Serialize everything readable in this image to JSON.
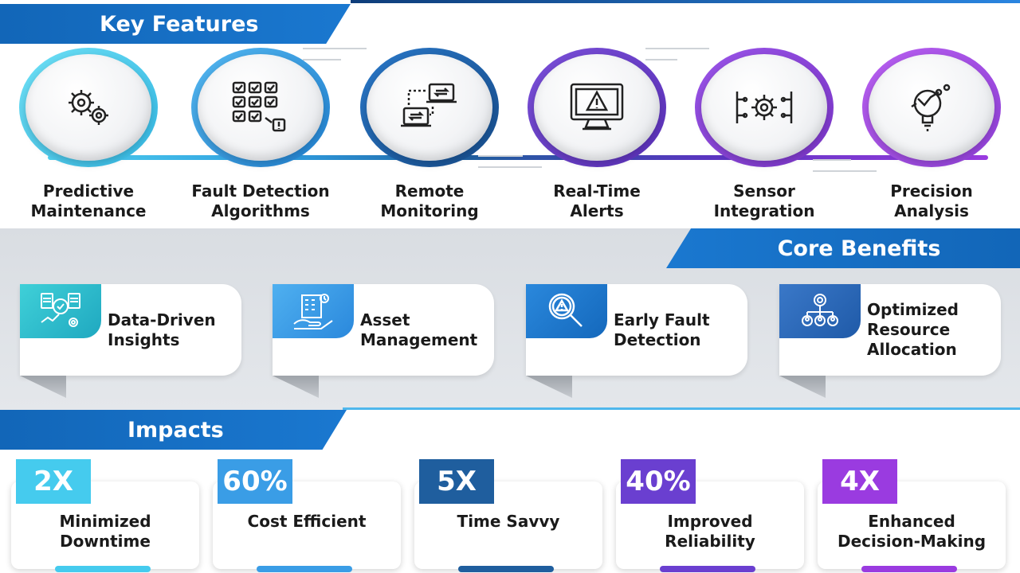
{
  "sections": {
    "key_features": "Key Features",
    "core_benefits": "Core Benefits",
    "impacts": "Impacts"
  },
  "features": [
    {
      "line1": "Predictive",
      "line2": "Maintenance",
      "icon": "gears-icon",
      "color": "#4fd0ee"
    },
    {
      "line1": "Fault Detection",
      "line2": "Algorithms",
      "icon": "checklist-grid-icon",
      "color": "#2f9ee0"
    },
    {
      "line1": "Remote",
      "line2": "Monitoring",
      "icon": "remote-laptops-icon",
      "color": "#1f5e9e"
    },
    {
      "line1": "Real-Time",
      "line2": "Alerts",
      "icon": "alert-monitor-icon",
      "color": "#6a3fd0"
    },
    {
      "line1": "Sensor",
      "line2": "Integration",
      "icon": "sensor-chip-icon",
      "color": "#8a3de0"
    },
    {
      "line1": "Precision",
      "line2": "Analysis",
      "icon": "precision-analysis-icon",
      "color": "#a03fe6"
    }
  ],
  "benefits": [
    {
      "line1": "Data-Driven",
      "line2": "Insights",
      "line3": "",
      "icon": "data-insights-icon",
      "color": "#2fc0cf"
    },
    {
      "line1": "Asset",
      "line2": "Management",
      "line3": "",
      "icon": "asset-building-icon",
      "color": "#3a9de6"
    },
    {
      "line1": "Early Fault",
      "line2": "Detection",
      "line3": "",
      "icon": "magnifier-alert-icon",
      "color": "#1b75cc"
    },
    {
      "line1": "Optimized",
      "line2": "Resource",
      "line3": "Allocation",
      "icon": "resource-network-icon",
      "color": "#2a68b8"
    }
  ],
  "impacts": [
    {
      "value": "2X",
      "line1": "Minimized",
      "line2": "Downtime",
      "color": "#45cbee"
    },
    {
      "value": "60%",
      "line1": "Cost Efficient",
      "line2": "",
      "color": "#3a9de6"
    },
    {
      "value": "5X",
      "line1": "Time Savvy",
      "line2": "",
      "color": "#1f5e9e"
    },
    {
      "value": "40%",
      "line1": "Improved",
      "line2": "Reliability",
      "color": "#6a3fd0"
    },
    {
      "value": "4X",
      "line1": "Enhanced",
      "line2": "Decision-Making",
      "color": "#9a3be0"
    }
  ]
}
